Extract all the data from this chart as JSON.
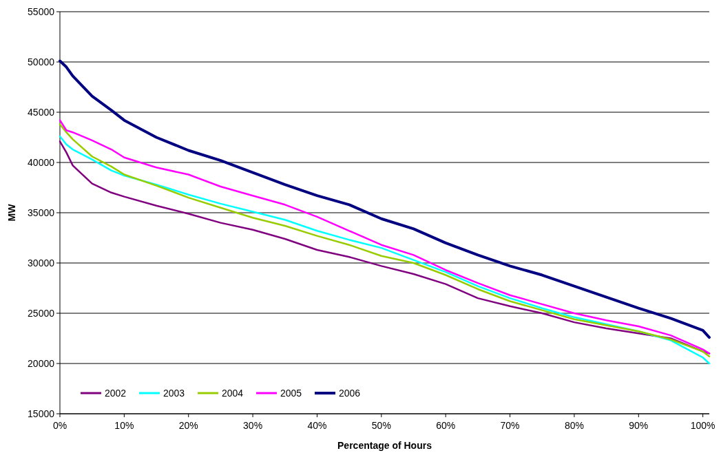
{
  "chart_data": {
    "type": "line",
    "xlabel": "Percentage of Hours",
    "ylabel": "MW",
    "xlim": [
      0,
      101
    ],
    "ylim": [
      15000,
      55000
    ],
    "xticks": [
      {
        "value": 0,
        "label": "0%"
      },
      {
        "value": 10,
        "label": "10%"
      },
      {
        "value": 20,
        "label": "20%"
      },
      {
        "value": 30,
        "label": "30%"
      },
      {
        "value": 40,
        "label": "40%"
      },
      {
        "value": 50,
        "label": "50%"
      },
      {
        "value": 60,
        "label": "60%"
      },
      {
        "value": 70,
        "label": "70%"
      },
      {
        "value": 80,
        "label": "80%"
      },
      {
        "value": 90,
        "label": "90%"
      },
      {
        "value": 100,
        "label": "100%"
      }
    ],
    "yticks": [
      15000,
      20000,
      25000,
      30000,
      35000,
      40000,
      45000,
      50000,
      55000
    ],
    "x": [
      0,
      1,
      2,
      5,
      8,
      10,
      15,
      20,
      25,
      30,
      35,
      40,
      45,
      50,
      55,
      60,
      65,
      70,
      75,
      80,
      85,
      90,
      95,
      100,
      101
    ],
    "grid": "y",
    "legend": "bottom left",
    "marker": "none",
    "line_style": "solid",
    "series": [
      {
        "name": "2002",
        "color": "#800080",
        "values": [
          42100,
          41000,
          39700,
          37900,
          37000,
          36600,
          35700,
          34900,
          34000,
          33300,
          32400,
          31300,
          30600,
          29700,
          28900,
          27900,
          26500,
          25700,
          25000,
          24100,
          23500,
          23000,
          22500,
          21200,
          21000
        ]
      },
      {
        "name": "2003",
        "color": "#00ffff",
        "values": [
          42600,
          41800,
          41300,
          40300,
          39200,
          38700,
          37800,
          36800,
          35900,
          35100,
          34300,
          33200,
          32300,
          31500,
          30300,
          29100,
          27700,
          26500,
          25500,
          24600,
          23900,
          23200,
          22300,
          20600,
          20000
        ]
      },
      {
        "name": "2004",
        "color": "#99cc00",
        "values": [
          43800,
          43000,
          42300,
          40600,
          39600,
          38800,
          37700,
          36500,
          35500,
          34500,
          33700,
          32700,
          31800,
          30700,
          30000,
          28800,
          27400,
          26200,
          25300,
          24400,
          23800,
          23200,
          22400,
          21200,
          20700
        ]
      },
      {
        "name": "2005",
        "color": "#ff00ff",
        "values": [
          44200,
          43200,
          43000,
          42200,
          41300,
          40500,
          39500,
          38800,
          37600,
          36700,
          35800,
          34600,
          33200,
          31800,
          30800,
          29300,
          28000,
          26800,
          25900,
          25000,
          24300,
          23700,
          22800,
          21400,
          21000
        ]
      },
      {
        "name": "2006",
        "color": "#000080",
        "values": [
          50100,
          49500,
          48600,
          46600,
          45200,
          44200,
          42500,
          41200,
          40200,
          39000,
          37800,
          36700,
          35800,
          34400,
          33400,
          32000,
          30800,
          29700,
          28800,
          27700,
          26600,
          25500,
          24500,
          23300,
          22600
        ]
      }
    ]
  }
}
